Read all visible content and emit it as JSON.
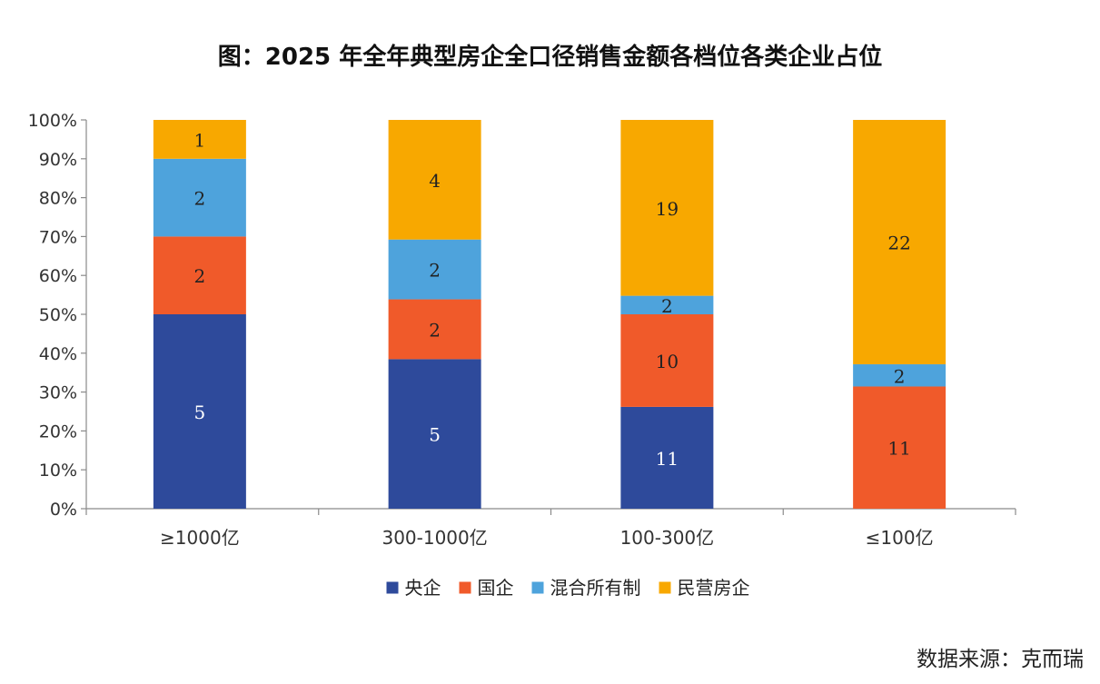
{
  "chart_data": {
    "type": "bar",
    "stacked": true,
    "percent": true,
    "title": "图：2025 年全年典型房企全口径销售金额各档位各类企业占位",
    "categories": [
      "≥1000亿",
      "300-1000亿",
      "100-300亿",
      "≤100亿"
    ],
    "series": [
      {
        "name": "央企",
        "color": "#2E4A9B",
        "counts": [
          5,
          5,
          11,
          0
        ],
        "label_color": "#ffffff"
      },
      {
        "name": "国企",
        "color": "#F05A2A",
        "counts": [
          2,
          2,
          10,
          11
        ],
        "label_color": "#222222"
      },
      {
        "name": "混合所有制",
        "color": "#4EA3DC",
        "counts": [
          2,
          2,
          2,
          2
        ],
        "label_color": "#222222"
      },
      {
        "name": "民营房企",
        "color": "#F8A800",
        "counts": [
          1,
          4,
          19,
          22
        ],
        "label_color": "#222222"
      }
    ],
    "y_ticks": [
      "0%",
      "10%",
      "20%",
      "30%",
      "40%",
      "50%",
      "60%",
      "70%",
      "80%",
      "90%",
      "100%"
    ],
    "ylim": [
      0,
      100
    ],
    "legend_position": "bottom-center"
  },
  "source": "数据来源：克而瑞"
}
